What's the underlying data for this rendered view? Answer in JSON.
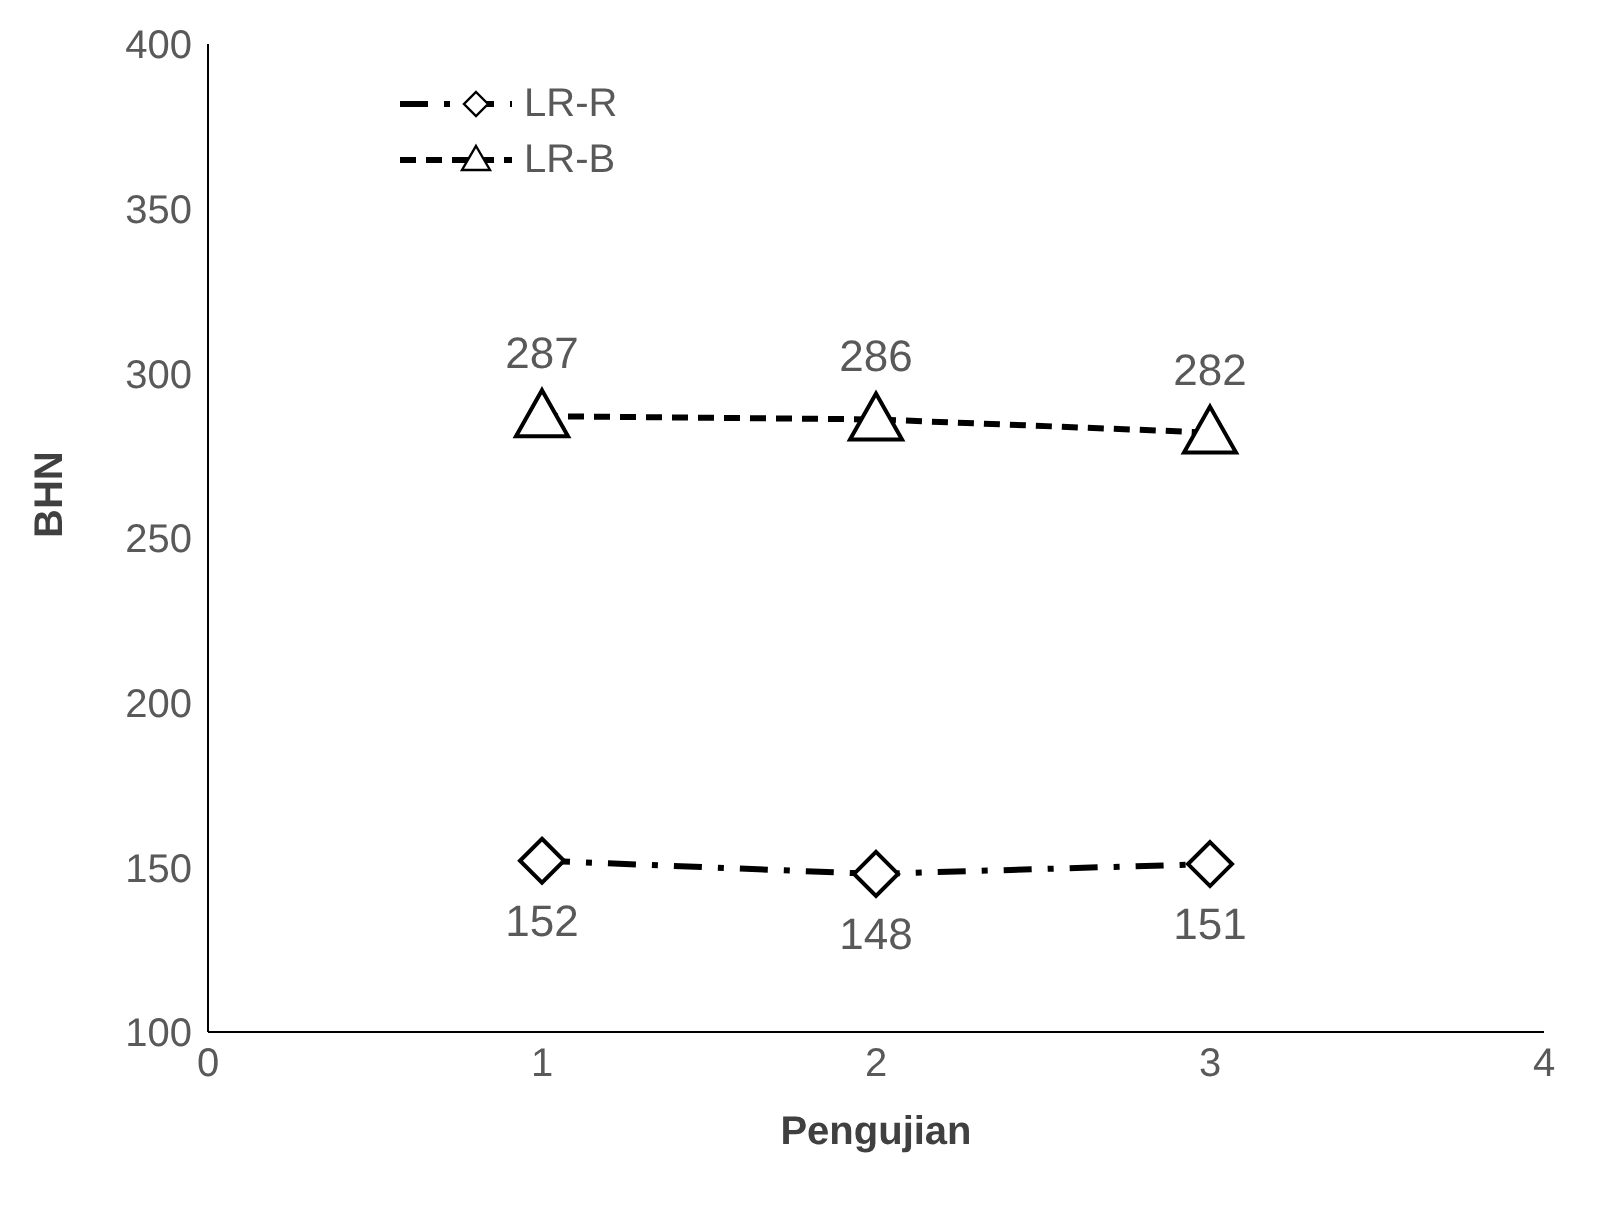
{
  "chart_data": {
    "type": "line",
    "xlabel": "Pengujian",
    "ylabel": "BHN",
    "x": [
      1,
      2,
      3
    ],
    "series": [
      {
        "name": "LR-R",
        "color": "#000000",
        "values": [
          152,
          148,
          151
        ],
        "marker": "diamond",
        "line_style": "dashdot"
      },
      {
        "name": "LR-B",
        "color": "#000000",
        "values": [
          287,
          286,
          282
        ],
        "marker": "triangle",
        "line_style": "dashed"
      }
    ],
    "xlim": [
      0,
      4
    ],
    "xticks": [
      0,
      1,
      2,
      3,
      4
    ],
    "ylim": [
      100,
      400
    ],
    "yticks": [
      100,
      150,
      200,
      250,
      300,
      350,
      400
    ],
    "grid": false,
    "legend": "top left",
    "data_labels": true
  }
}
